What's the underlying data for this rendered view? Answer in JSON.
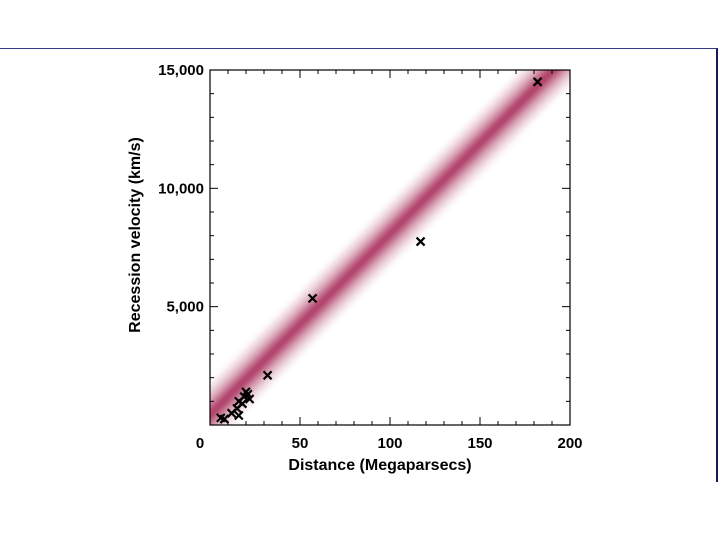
{
  "chart_data": {
    "type": "scatter",
    "title": "",
    "xlabel": "Distance (Megaparsecs)",
    "ylabel": "Recession velocity (km/s)",
    "xlim": [
      0,
      200
    ],
    "ylim": [
      0,
      15000
    ],
    "x_ticks": [
      "0",
      "50",
      "100",
      "150",
      "200"
    ],
    "y_ticks": [
      "5,000",
      "10,000",
      "15,000"
    ],
    "grid": false,
    "legend": "none",
    "band_color": "#a3224f",
    "marker": "x",
    "fit_band": {
      "x": [
        0,
        200
      ],
      "y": [
        0,
        15300
      ]
    },
    "points": [
      {
        "x": 6,
        "y": 300
      },
      {
        "x": 8,
        "y": 250
      },
      {
        "x": 12,
        "y": 500
      },
      {
        "x": 15,
        "y": 700
      },
      {
        "x": 16,
        "y": 400
      },
      {
        "x": 16,
        "y": 1000
      },
      {
        "x": 18,
        "y": 900
      },
      {
        "x": 19,
        "y": 1200
      },
      {
        "x": 20,
        "y": 1400
      },
      {
        "x": 21,
        "y": 1300
      },
      {
        "x": 22,
        "y": 1100
      },
      {
        "x": 32,
        "y": 2100
      },
      {
        "x": 57,
        "y": 5350
      },
      {
        "x": 117,
        "y": 7750
      },
      {
        "x": 182,
        "y": 14500
      }
    ]
  }
}
